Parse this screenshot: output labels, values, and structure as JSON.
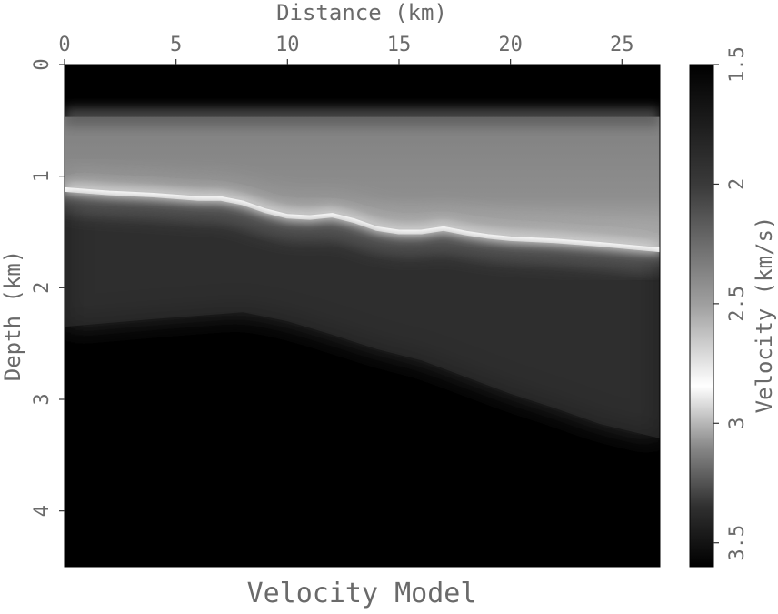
{
  "chart_data": {
    "type": "heatmap",
    "title": "Velocity Model",
    "xlabel": "Distance (km)",
    "ylabel": "Depth (km)",
    "colorbar_label": "Velocity (km/s)",
    "xlim": [
      0,
      26.7
    ],
    "ylim": [
      0,
      4.5
    ],
    "x_ticks": [
      0,
      5,
      10,
      15,
      20,
      25
    ],
    "y_ticks": [
      0,
      1,
      2,
      3,
      4
    ],
    "x_axis_position": "top",
    "y_axis_inverted": true,
    "colormap": "grayscale",
    "colorbar_range": [
      1.5,
      3.6
    ],
    "colorbar_ticks": [
      1.5,
      2,
      2.5,
      3,
      3.5
    ],
    "colorbar_stops": [
      {
        "velocity": 1.5,
        "color": "#000000"
      },
      {
        "velocity": 2.0,
        "color": "#3a3a3a"
      },
      {
        "velocity": 2.5,
        "color": "#a0a0a0"
      },
      {
        "velocity": 2.85,
        "color": "#ffffff"
      },
      {
        "velocity": 3.1,
        "color": "#8a8a8a"
      },
      {
        "velocity": 3.35,
        "color": "#303030"
      },
      {
        "velocity": 3.6,
        "color": "#000000"
      }
    ],
    "water_bottom_depth": 0.47,
    "bright_reflector": {
      "distance": [
        0,
        2,
        4,
        6,
        7,
        8,
        9,
        10,
        11,
        12,
        13,
        14,
        15,
        16,
        17,
        18,
        19,
        20,
        22,
        24,
        26.7
      ],
      "depth": [
        1.12,
        1.15,
        1.17,
        1.2,
        1.2,
        1.24,
        1.31,
        1.36,
        1.37,
        1.35,
        1.4,
        1.47,
        1.5,
        1.5,
        1.47,
        1.51,
        1.54,
        1.56,
        1.58,
        1.61,
        1.66
      ]
    },
    "fast_layer_top": {
      "distance": [
        0,
        4,
        8,
        10,
        12,
        14,
        16,
        18,
        20,
        22,
        24,
        26.7
      ],
      "depth": [
        2.35,
        2.28,
        2.22,
        2.3,
        2.42,
        2.55,
        2.65,
        2.8,
        2.95,
        3.08,
        3.22,
        3.35
      ]
    }
  }
}
